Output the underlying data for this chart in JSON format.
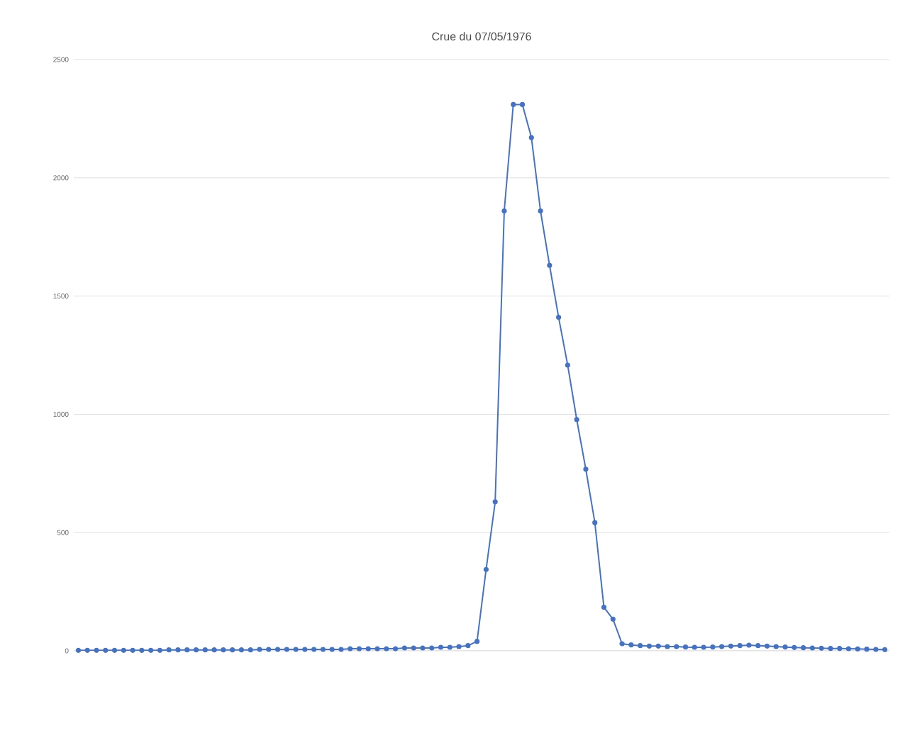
{
  "chart_data": {
    "type": "line",
    "title": "Crue du 07/05/1976",
    "categories": [
      null,
      null,
      null,
      null,
      null,
      null,
      null,
      null,
      null,
      null,
      null,
      null,
      null,
      null,
      null,
      null,
      null,
      null,
      null,
      null,
      null,
      null,
      null,
      null,
      null,
      null,
      null,
      null,
      null,
      null,
      null,
      null,
      null,
      null,
      null,
      null,
      null,
      null,
      null,
      null,
      null,
      null,
      null,
      null,
      null,
      null,
      null,
      null,
      null,
      null,
      null,
      null,
      null,
      null,
      null,
      null,
      null,
      null,
      null,
      null,
      null,
      null,
      null,
      null,
      null,
      null,
      null,
      null,
      null,
      null,
      null,
      null,
      null,
      null,
      null,
      null,
      null,
      null,
      null,
      null,
      null,
      null,
      null,
      null,
      null,
      null,
      null,
      null,
      null,
      null
    ],
    "series": [
      {
        "color": "#4472c4",
        "values": [
          2,
          2,
          2,
          2,
          2,
          2,
          2,
          2,
          2,
          2,
          4,
          4,
          4,
          4,
          4,
          4,
          4,
          4,
          4,
          4,
          6,
          6,
          6,
          6,
          6,
          6,
          6,
          6,
          6,
          6,
          9,
          9,
          9,
          9,
          9,
          9,
          12,
          12,
          12,
          12,
          15,
          15,
          18,
          22,
          40,
          344,
          630,
          1860,
          2310,
          2310,
          2170,
          1860,
          1630,
          1410,
          1208,
          978,
          768,
          542,
          184,
          134,
          30,
          25,
          22,
          20,
          20,
          18,
          18,
          16,
          15,
          15,
          16,
          18,
          20,
          22,
          24,
          22,
          20,
          18,
          16,
          14,
          13,
          12,
          11,
          10,
          10,
          9,
          8,
          7,
          6,
          5
        ]
      }
    ],
    "ylim": [
      0,
      2500
    ],
    "yticks": [
      0,
      500,
      1000,
      1500,
      2000,
      2500
    ],
    "grid": "y",
    "marker": "circle",
    "line_style": "solid"
  }
}
